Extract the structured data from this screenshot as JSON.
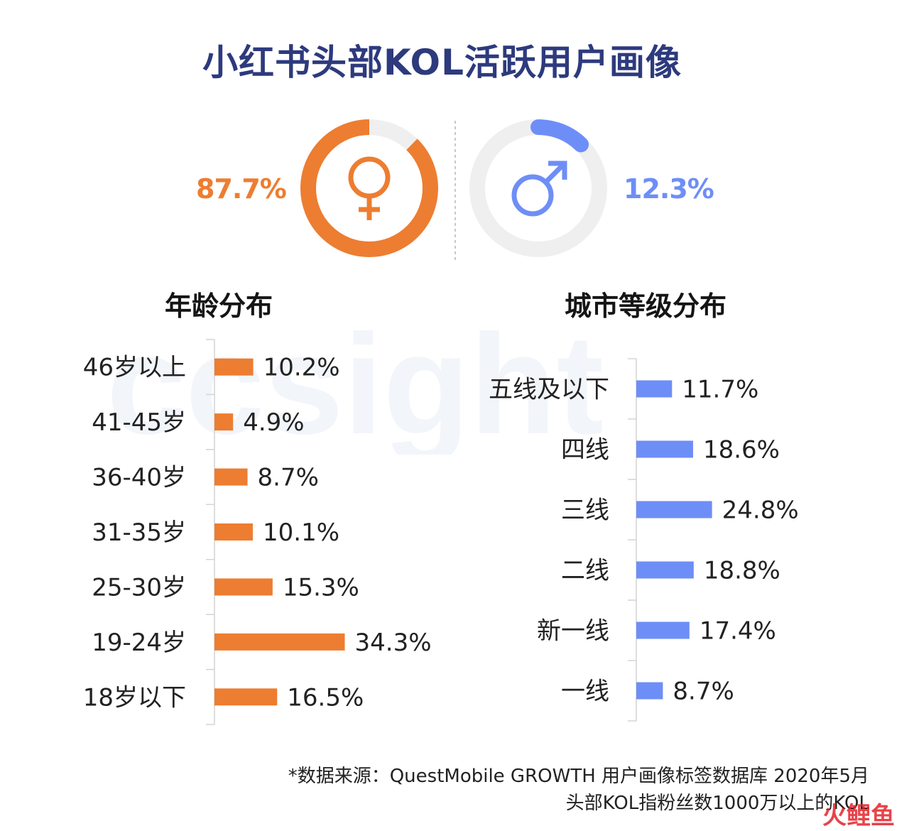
{
  "title": "小红书头部KOL活跃用户画像",
  "watermark_text": "ccsight",
  "gender": {
    "female_pct": "87.7%",
    "male_pct": "12.3%",
    "female_value": 87.7,
    "male_value": 12.3,
    "female_color": "#ed7d31",
    "male_color": "#6e8ef7",
    "track_color": "#efefef"
  },
  "chart_data": [
    {
      "type": "bar",
      "orientation": "horizontal",
      "title": "年龄分布",
      "categories": [
        "46岁以上",
        "41-45岁",
        "36-40岁",
        "31-35岁",
        "25-30岁",
        "19-24岁",
        "18岁以下"
      ],
      "values": [
        10.2,
        4.9,
        8.7,
        10.1,
        15.3,
        34.3,
        16.5
      ],
      "labels": [
        "10.2%",
        "4.9%",
        "8.7%",
        "10.1%",
        "15.3%",
        "34.3%",
        "16.5%"
      ],
      "color": "#ed7d31"
    },
    {
      "type": "bar",
      "orientation": "horizontal",
      "title": "城市等级分布",
      "categories": [
        "五线及以下",
        "四线",
        "三线",
        "二线",
        "新一线",
        "一线"
      ],
      "values": [
        11.7,
        18.6,
        24.8,
        18.8,
        17.4,
        8.7
      ],
      "labels": [
        "11.7%",
        "18.6%",
        "24.8%",
        "18.8%",
        "17.4%",
        "8.7%"
      ],
      "color": "#6e8ef7"
    }
  ],
  "footnote": {
    "line1": "*数据来源：QuestMobile GROWTH 用户画像标签数据库 2020年5月",
    "line2": "头部KOL指粉丝数1000万以上的KOL"
  },
  "logo_text": "火鲤鱼"
}
